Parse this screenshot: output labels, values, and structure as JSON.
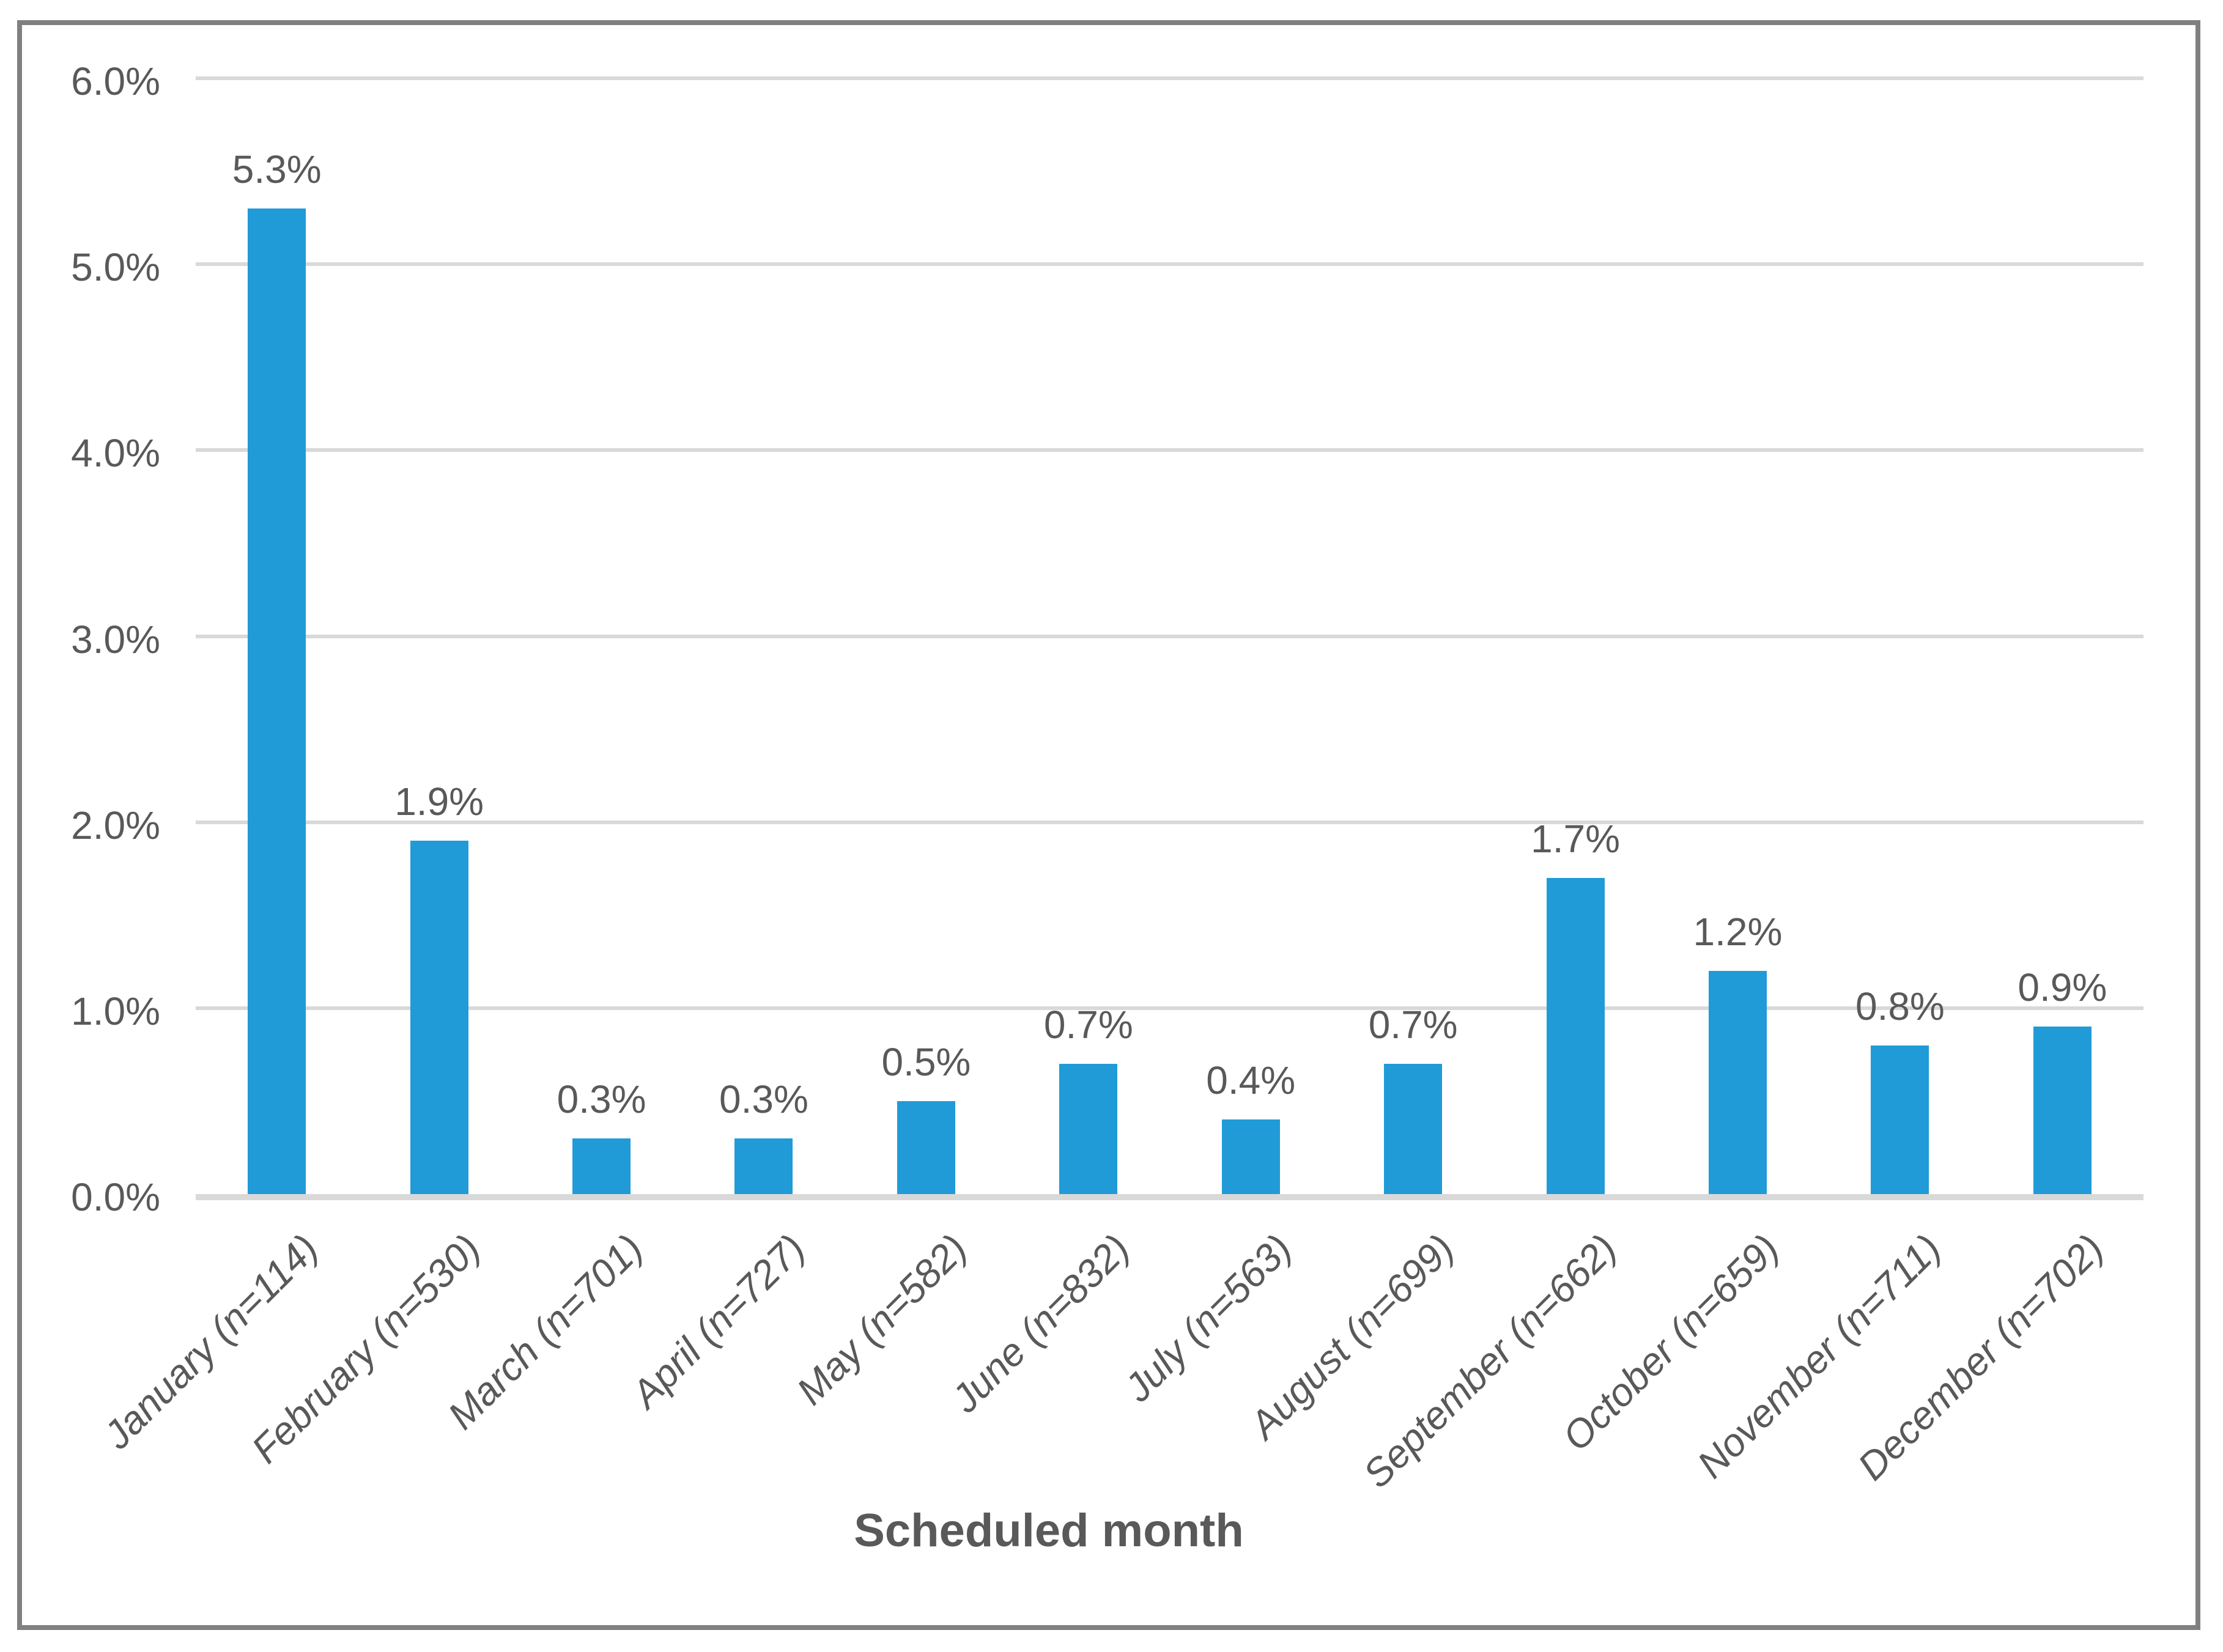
{
  "chart_data": {
    "type": "bar",
    "title": "",
    "xlabel": "Scheduled month",
    "ylabel": "",
    "categories": [
      "January (n=114)",
      "February (n=530)",
      "March (n=701)",
      "April (n=727)",
      "May (n=582)",
      "June (n=832)",
      "July (n=563)",
      "August (n=699)",
      "September (n=662)",
      "October (n=659)",
      "November (n=711)",
      "December (n=702)"
    ],
    "values": [
      5.3,
      1.9,
      0.3,
      0.3,
      0.5,
      0.7,
      0.4,
      0.7,
      1.7,
      1.2,
      0.8,
      0.9
    ],
    "data_labels": [
      "5.3%",
      "1.9%",
      "0.3%",
      "0.3%",
      "0.5%",
      "0.7%",
      "0.4%",
      "0.7%",
      "1.7%",
      "1.2%",
      "0.8%",
      "0.9%"
    ],
    "ylim": [
      0,
      6
    ],
    "ytick_step": 1,
    "yticks": [
      {
        "value": 6,
        "label": "6.0%"
      },
      {
        "value": 5,
        "label": "5.0%"
      },
      {
        "value": 4,
        "label": "4.0%"
      },
      {
        "value": 3,
        "label": "3.0%"
      },
      {
        "value": 2,
        "label": "2.0%"
      },
      {
        "value": 1,
        "label": "1.0%"
      },
      {
        "value": 0,
        "label": "0.0%"
      }
    ],
    "grid": "horizontal",
    "legend_position": "none",
    "colors": {
      "bar": "#209BD7",
      "gridline": "#D9D9D9",
      "axis_line": "#D9D9D9",
      "text": "#595959",
      "border": "#808080",
      "background": "#FFFFFF"
    }
  }
}
